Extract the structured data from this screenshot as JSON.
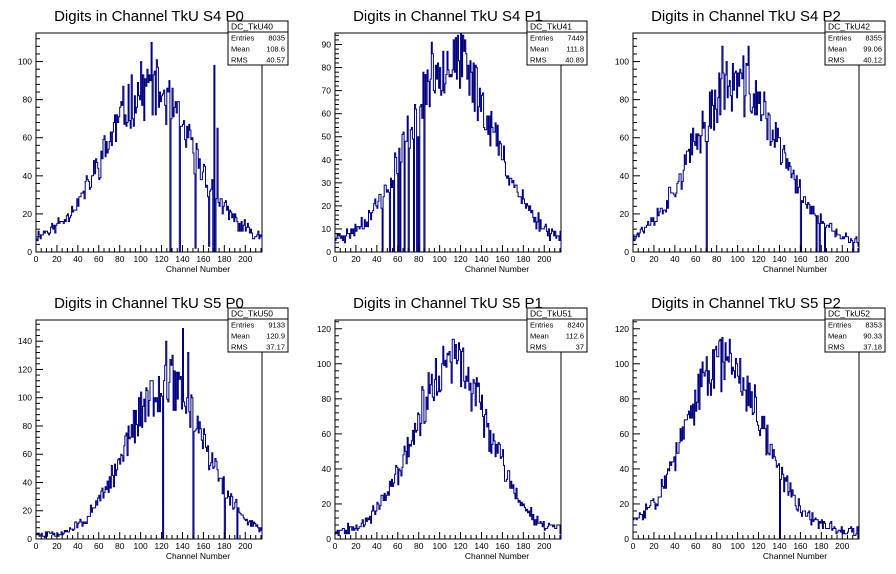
{
  "chart_data": [
    {
      "type": "histogram",
      "title": "Digits in Channel TkU S4 P0",
      "xlabel": "Channel Number",
      "ylabel": "",
      "xlim": [
        0,
        216
      ],
      "ylim": [
        0,
        115
      ],
      "xticks": [
        0,
        20,
        40,
        60,
        80,
        100,
        120,
        140,
        160,
        180,
        200
      ],
      "yticks": [
        0,
        20,
        40,
        60,
        80,
        100
      ],
      "stats": {
        "name": "DC_TkU40",
        "rows": [
          [
            "Entries",
            "8035"
          ],
          [
            "Mean",
            "108.6"
          ],
          [
            "RMS",
            "40.57"
          ]
        ]
      },
      "bins": 216,
      "profile": {
        "center": 108,
        "width": 41,
        "peak": 80,
        "base": 6,
        "seed": 11
      },
      "dips": [
        [
          128,
          0
        ],
        [
          137,
          0
        ],
        [
          152,
          2
        ],
        [
          165,
          3
        ],
        [
          169,
          0
        ],
        [
          171,
          0
        ]
      ],
      "spikes": [
        [
          110,
          110
        ],
        [
          170,
          98
        ],
        [
          173,
          65
        ]
      ]
    },
    {
      "type": "histogram",
      "title": "Digits in Channel TkU S4 P1",
      "xlabel": "Channel Number",
      "ylabel": "",
      "xlim": [
        0,
        216
      ],
      "ylim": [
        0,
        95
      ],
      "xticks": [
        0,
        20,
        40,
        60,
        80,
        100,
        120,
        140,
        160,
        180,
        200
      ],
      "yticks": [
        0,
        10,
        20,
        30,
        40,
        50,
        60,
        70,
        80,
        90
      ],
      "stats": {
        "name": "DC_TkU41",
        "rows": [
          [
            "Entries",
            "7449"
          ],
          [
            "Mean",
            "111.8"
          ],
          [
            "RMS",
            "40.89"
          ]
        ]
      },
      "bins": 216,
      "profile": {
        "center": 111,
        "width": 40,
        "peak": 80,
        "base": 4,
        "seed": 23
      },
      "dips": [
        [
          45,
          0
        ],
        [
          52,
          0
        ],
        [
          56,
          0
        ],
        [
          60,
          0
        ],
        [
          62,
          0
        ],
        [
          66,
          0
        ],
        [
          70,
          0
        ],
        [
          75,
          0
        ],
        [
          78,
          0
        ],
        [
          80,
          0
        ],
        [
          85,
          0
        ]
      ],
      "spikes": []
    },
    {
      "type": "histogram",
      "title": "Digits in Channel TkU S4 P2",
      "xlabel": "Channel Number",
      "ylabel": "",
      "xlim": [
        0,
        216
      ],
      "ylim": [
        0,
        115
      ],
      "xticks": [
        0,
        20,
        40,
        60,
        80,
        100,
        120,
        140,
        160,
        180,
        200
      ],
      "yticks": [
        0,
        20,
        40,
        60,
        80,
        100
      ],
      "stats": {
        "name": "DC_TkU42",
        "rows": [
          [
            "Entries",
            "8355"
          ],
          [
            "Mean",
            "99.06"
          ],
          [
            "RMS",
            "40.12"
          ]
        ]
      },
      "bins": 216,
      "profile": {
        "center": 99,
        "width": 41,
        "peak": 84,
        "base": 4,
        "seed": 37
      },
      "dips": [
        [
          70,
          0
        ],
        [
          160,
          0
        ],
        [
          175,
          0
        ],
        [
          178,
          0
        ],
        [
          183,
          0
        ],
        [
          210,
          0
        ]
      ],
      "spikes": [
        [
          85,
          108
        ],
        [
          110,
          108
        ]
      ]
    },
    {
      "type": "histogram",
      "title": "Digits in Channel TkU S5 P0",
      "xlabel": "Channel Number",
      "ylabel": "",
      "xlim": [
        0,
        216
      ],
      "ylim": [
        0,
        155
      ],
      "xticks": [
        0,
        20,
        40,
        60,
        80,
        100,
        120,
        140,
        160,
        180,
        200
      ],
      "yticks": [
        0,
        20,
        40,
        60,
        80,
        100,
        120,
        140
      ],
      "stats": {
        "name": "DC_TkU50",
        "rows": [
          [
            "Entries",
            "9133"
          ],
          [
            "Mean",
            "120.9"
          ],
          [
            "RMS",
            "37.17"
          ]
        ]
      },
      "bins": 216,
      "profile": {
        "center": 124,
        "width": 37,
        "peak": 108,
        "base": 2,
        "seed": 51
      },
      "dips": [
        [
          121,
          0
        ],
        [
          150,
          0
        ],
        [
          180,
          0
        ],
        [
          192,
          0
        ]
      ],
      "spikes": [
        [
          124,
          140
        ],
        [
          140,
          149
        ],
        [
          145,
          132
        ],
        [
          130,
          130
        ]
      ]
    },
    {
      "type": "histogram",
      "title": "Digits in Channel TkU S5 P1",
      "xlabel": "Channel Number",
      "ylabel": "",
      "xlim": [
        0,
        216
      ],
      "ylim": [
        0,
        125
      ],
      "xticks": [
        0,
        20,
        40,
        60,
        80,
        100,
        120,
        140,
        160,
        180,
        200
      ],
      "yticks": [
        0,
        20,
        40,
        60,
        80,
        100,
        120
      ],
      "stats": {
        "name": "DC_TkU51",
        "rows": [
          [
            "Entries",
            "8240"
          ],
          [
            "Mean",
            "112.6"
          ],
          [
            "RMS",
            "37"
          ]
        ]
      },
      "bins": 216,
      "profile": {
        "center": 112,
        "width": 36,
        "peak": 95,
        "base": 4,
        "seed": 67
      },
      "dips": [],
      "spikes": [
        [
          112,
          114
        ],
        [
          118,
          112
        ]
      ]
    },
    {
      "type": "histogram",
      "title": "Digits in Channel TkU S5 P2",
      "xlabel": "Channel Number",
      "ylabel": "",
      "xlim": [
        0,
        216
      ],
      "ylim": [
        0,
        125
      ],
      "xticks": [
        0,
        20,
        40,
        60,
        80,
        100,
        120,
        140,
        160,
        180,
        200
      ],
      "yticks": [
        0,
        20,
        40,
        60,
        80,
        100,
        120
      ],
      "stats": {
        "name": "DC_TkU52",
        "rows": [
          [
            "Entries",
            "8353"
          ],
          [
            "Mean",
            "90.33"
          ],
          [
            "RMS",
            "37.18"
          ]
        ]
      },
      "bins": 216,
      "profile": {
        "center": 88,
        "width": 37,
        "peak": 98,
        "base": 4,
        "seed": 83
      },
      "dips": [
        [
          140,
          0
        ]
      ],
      "spikes": [
        [
          85,
          115
        ],
        [
          92,
          114
        ]
      ]
    }
  ],
  "colors": {
    "line": "#000080",
    "axis": "#000000",
    "background": "#ffffff"
  }
}
